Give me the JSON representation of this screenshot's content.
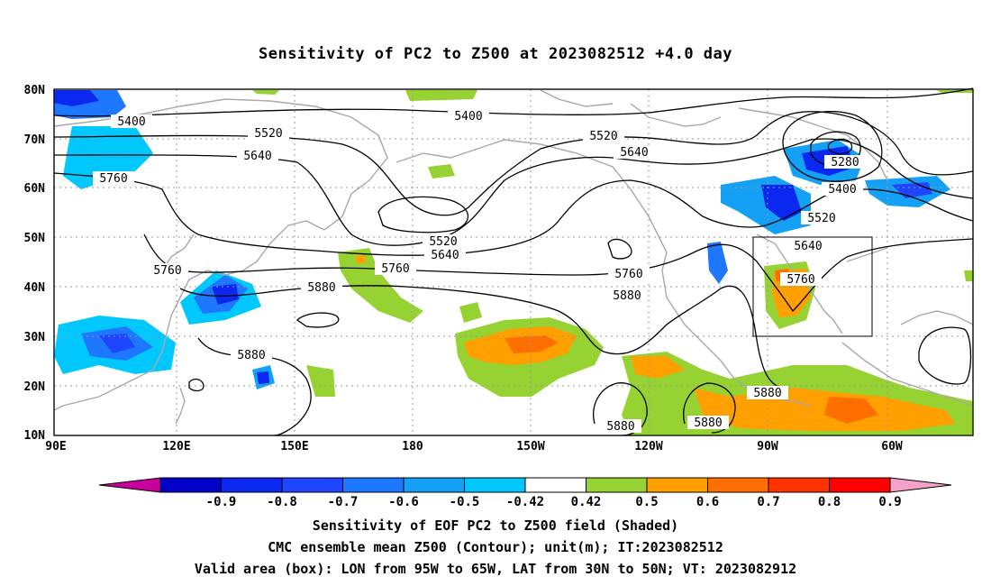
{
  "title": "Sensitivity of PC2 to Z500 at 2023082512 +4.0 day",
  "map": {
    "lat_labels": [
      "80N",
      "70N",
      "60N",
      "50N",
      "40N",
      "30N",
      "20N",
      "10N"
    ],
    "lon_labels": [
      "90E",
      "120E",
      "150E",
      "180",
      "150W",
      "120W",
      "90W",
      "60W"
    ],
    "box_label": "Valid area (box)",
    "contour_labels": [
      "5400",
      "5520",
      "5640",
      "5760",
      "5880",
      "5280"
    ]
  },
  "colorbar": {
    "ticks": [
      "-0.9",
      "-0.8",
      "-0.7",
      "-0.6",
      "-0.5",
      "-0.42",
      "0.42",
      "0.5",
      "0.6",
      "0.7",
      "0.8",
      "0.9"
    ],
    "colors": [
      "#c8009b",
      "#0000c8",
      "#0a28f0",
      "#1e46ff",
      "#1e78ff",
      "#14a0f5",
      "#00c8ff",
      "#ffffff",
      "#96d232",
      "#ffa000",
      "#ff6e00",
      "#ff3200",
      "#ff0000",
      "#f5a0c8"
    ]
  },
  "captions": {
    "line1": "Sensitivity of EOF PC2 to Z500 field (Shaded)",
    "line2": "CMC ensemble mean Z500 (Contour); unit(m); IT:2023082512",
    "line3": "Valid area (box): LON from 95W to 65W, LAT from 30N to 50N; VT: 2023082912"
  }
}
